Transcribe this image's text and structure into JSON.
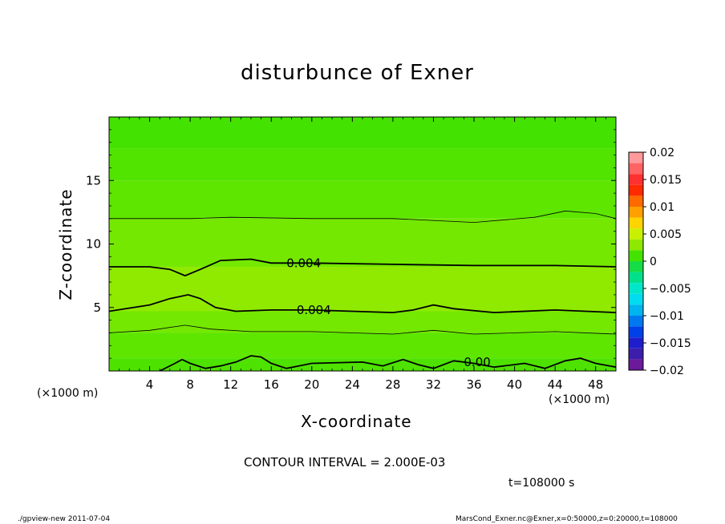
{
  "chart_data": {
    "type": "heatmap",
    "title": "disturbunce of Exner",
    "xlabel": "X-coordinate",
    "ylabel": "Z-coordinate",
    "x_unit_left": "(×1000 m)",
    "x_unit_right": "(×1000 m)",
    "xlim": [
      0,
      50
    ],
    "ylim": [
      0,
      20
    ],
    "x_ticks": [
      4,
      8,
      12,
      16,
      20,
      24,
      28,
      32,
      36,
      40,
      44,
      48
    ],
    "y_ticks": [
      5,
      10,
      15
    ],
    "colorbar": {
      "ticks": [
        "0.02",
        "0.015",
        "0.01",
        "0.005",
        "0",
        "−0.005",
        "−0.01",
        "−0.015",
        "−0.02"
      ],
      "range": [
        -0.02,
        0.02
      ],
      "levels": [
        {
          "lo": 0.018,
          "hi": 0.02,
          "color": "#ff9a9a"
        },
        {
          "lo": 0.016,
          "hi": 0.018,
          "color": "#ff6464"
        },
        {
          "lo": 0.014,
          "hi": 0.016,
          "color": "#ff3030"
        },
        {
          "lo": 0.012,
          "hi": 0.014,
          "color": "#ff2a00"
        },
        {
          "lo": 0.01,
          "hi": 0.012,
          "color": "#ff6a00"
        },
        {
          "lo": 0.008,
          "hi": 0.01,
          "color": "#ffa000"
        },
        {
          "lo": 0.006,
          "hi": 0.008,
          "color": "#ffd400"
        },
        {
          "lo": 0.004,
          "hi": 0.006,
          "color": "#c8f000"
        },
        {
          "lo": 0.002,
          "hi": 0.004,
          "color": "#8ee800"
        },
        {
          "lo": 0.0,
          "hi": 0.002,
          "color": "#44e200"
        },
        {
          "lo": -0.002,
          "hi": 0.0,
          "color": "#16dc46"
        },
        {
          "lo": -0.004,
          "hi": -0.002,
          "color": "#00e08a"
        },
        {
          "lo": -0.006,
          "hi": -0.004,
          "color": "#00e6c8"
        },
        {
          "lo": -0.008,
          "hi": -0.006,
          "color": "#00dcf0"
        },
        {
          "lo": -0.01,
          "hi": -0.008,
          "color": "#00b4f0"
        },
        {
          "lo": -0.012,
          "hi": -0.01,
          "color": "#0078f0"
        },
        {
          "lo": -0.014,
          "hi": -0.012,
          "color": "#0040e8"
        },
        {
          "lo": -0.016,
          "hi": -0.014,
          "color": "#1e1ecc"
        },
        {
          "lo": -0.018,
          "hi": -0.016,
          "color": "#3c1eaa"
        },
        {
          "lo": -0.02,
          "hi": -0.018,
          "color": "#6a1a9a"
        }
      ]
    },
    "field_bands": [
      {
        "z0": 17.5,
        "z1": 20,
        "value_range": "0 to 0.002",
        "color": "#44e200"
      },
      {
        "z0": 15.0,
        "z1": 17.5,
        "value_range": "0 to 0.002",
        "color": "#50e400"
      },
      {
        "z0": 12.0,
        "z1": 15.0,
        "value_range": "0 to 0.002",
        "color": "#5ee600"
      },
      {
        "z0": 8.2,
        "z1": 12.0,
        "value_range": "0.002 to 0.004",
        "color": "#74e800"
      },
      {
        "z0": 4.7,
        "z1": 8.2,
        "value_range": "0.004 to 0.006",
        "color": "#90ea00"
      },
      {
        "z0": 3.0,
        "z1": 4.7,
        "value_range": "0.002 to 0.004",
        "color": "#74e800"
      },
      {
        "z0": 1.0,
        "z1": 3.0,
        "value_range": "0 to 0.002",
        "color": "#5ee600"
      },
      {
        "z0": 0.0,
        "z1": 1.0,
        "value_range": "0 to 0.002",
        "color": "#4ee200"
      }
    ],
    "contours": [
      {
        "level": 0.002,
        "bold": false,
        "points": [
          [
            0,
            12.0
          ],
          [
            8,
            12.0
          ],
          [
            12,
            12.1
          ],
          [
            20,
            12.0
          ],
          [
            28,
            12.0
          ],
          [
            36,
            11.7
          ],
          [
            42,
            12.1
          ],
          [
            45,
            12.6
          ],
          [
            48,
            12.4
          ],
          [
            50,
            12.0
          ]
        ]
      },
      {
        "level": 0.004,
        "bold": true,
        "label": "0.004",
        "points": [
          [
            0,
            8.2
          ],
          [
            4,
            8.2
          ],
          [
            6,
            8.0
          ],
          [
            7.5,
            7.5
          ],
          [
            9,
            8.0
          ],
          [
            11,
            8.7
          ],
          [
            14,
            8.8
          ],
          [
            16,
            8.5
          ],
          [
            20,
            8.5
          ],
          [
            28,
            8.4
          ],
          [
            36,
            8.3
          ],
          [
            44,
            8.3
          ],
          [
            50,
            8.2
          ]
        ]
      },
      {
        "level": 0.004,
        "bold": true,
        "label": "0.004",
        "points": [
          [
            0,
            4.7
          ],
          [
            4,
            5.2
          ],
          [
            6,
            5.7
          ],
          [
            7.8,
            6.0
          ],
          [
            9,
            5.7
          ],
          [
            10.5,
            5.0
          ],
          [
            12.5,
            4.7
          ],
          [
            16,
            4.8
          ],
          [
            20,
            4.8
          ],
          [
            28,
            4.6
          ],
          [
            30,
            4.8
          ],
          [
            32,
            5.2
          ],
          [
            34,
            4.9
          ],
          [
            38,
            4.6
          ],
          [
            44,
            4.8
          ],
          [
            50,
            4.6
          ]
        ]
      },
      {
        "level": 0.002,
        "bold": false,
        "points": [
          [
            0,
            3.0
          ],
          [
            4,
            3.2
          ],
          [
            7.5,
            3.6
          ],
          [
            10,
            3.3
          ],
          [
            14,
            3.1
          ],
          [
            20,
            3.1
          ],
          [
            28,
            2.9
          ],
          [
            32,
            3.2
          ],
          [
            36,
            2.9
          ],
          [
            44,
            3.1
          ],
          [
            50,
            2.9
          ]
        ]
      },
      {
        "level": 0.0,
        "bold": true,
        "label": "0.00",
        "points": [
          [
            5,
            0
          ],
          [
            6.5,
            0.6
          ],
          [
            7.2,
            0.9
          ],
          [
            8,
            0.6
          ],
          [
            9.5,
            0.2
          ],
          [
            11,
            0.4
          ],
          [
            12.5,
            0.7
          ],
          [
            14,
            1.2
          ],
          [
            15,
            1.1
          ],
          [
            16,
            0.6
          ],
          [
            17.5,
            0.2
          ],
          [
            20,
            0.6
          ],
          [
            25,
            0.7
          ],
          [
            27,
            0.4
          ],
          [
            29,
            0.9
          ],
          [
            30.5,
            0.5
          ],
          [
            32,
            0.2
          ],
          [
            34,
            0.8
          ],
          [
            36,
            0.6
          ],
          [
            38,
            0.3
          ],
          [
            41,
            0.6
          ],
          [
            43,
            0.2
          ],
          [
            45,
            0.8
          ],
          [
            46.5,
            1.0
          ],
          [
            48,
            0.6
          ],
          [
            50,
            0.3
          ]
        ]
      }
    ],
    "annotations": {
      "contour_interval": "CONTOUR INTERVAL = 2.000E-03",
      "time": "t=108000  s",
      "footer_left": "./gpview-new   2011-07-04",
      "footer_right": "MarsCond_Exner.nc@Exner,x=0:50000,z=0:20000,t=108000"
    }
  }
}
